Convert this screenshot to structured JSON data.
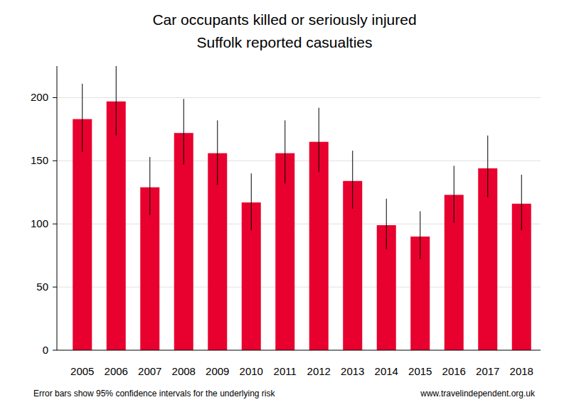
{
  "chart_data": {
    "type": "bar",
    "title": "Car occupants killed or seriously injured",
    "subtitle": "Suffolk reported casualties",
    "categories": [
      "2005",
      "2006",
      "2007",
      "2008",
      "2009",
      "2010",
      "2011",
      "2012",
      "2013",
      "2014",
      "2015",
      "2016",
      "2017",
      "2018"
    ],
    "values": [
      183,
      197,
      129,
      172,
      156,
      117,
      156,
      165,
      134,
      99,
      90,
      123,
      144,
      116
    ],
    "error_lower": [
      157,
      170,
      107,
      147,
      131,
      95,
      132,
      141,
      112,
      80,
      72,
      101,
      121,
      95
    ],
    "error_upper": [
      211,
      226,
      153,
      199,
      182,
      140,
      182,
      192,
      158,
      120,
      110,
      146,
      170,
      139
    ],
    "color": "#e8002e",
    "ylim": [
      0,
      225
    ],
    "yticks": [
      0,
      50,
      100,
      150,
      200
    ],
    "grid": true,
    "annotations": [
      "Error bars show 95% confidence intervals for the underlying risk",
      "www.travelindependent.org.uk"
    ]
  }
}
